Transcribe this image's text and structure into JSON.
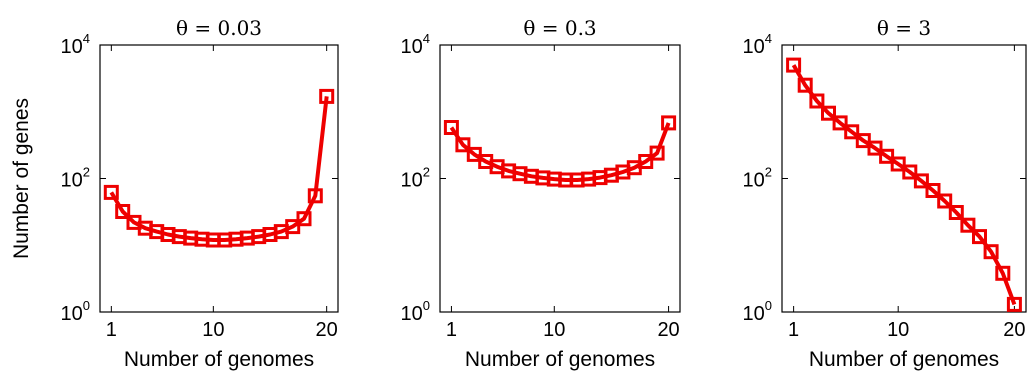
{
  "chart_data": [
    {
      "type": "line",
      "title": "θ = 0.03",
      "xlabel": "Number of genomes",
      "ylabel": "Number of genes",
      "yscale": "log",
      "ylim": [
        1,
        10000
      ],
      "xlim": [
        0,
        21
      ],
      "xticks": [
        1,
        10,
        20
      ],
      "yticks": [
        {
          "value": 1,
          "base": "10",
          "exp": "0"
        },
        {
          "value": 100,
          "base": "10",
          "exp": "2"
        },
        {
          "value": 10000,
          "base": "10",
          "exp": "4"
        }
      ],
      "x": [
        1,
        2,
        3,
        4,
        5,
        6,
        7,
        8,
        9,
        10,
        11,
        12,
        13,
        14,
        15,
        16,
        17,
        18,
        19,
        20
      ],
      "series": [
        {
          "color": "#ee0000",
          "values": [
            62,
            32,
            22,
            18,
            16,
            14.5,
            13.5,
            12.8,
            12.3,
            12,
            12,
            12.3,
            12.8,
            13.5,
            14.5,
            16,
            19,
            25,
            55,
            1700
          ]
        }
      ]
    },
    {
      "type": "line",
      "title": "θ = 0.3",
      "xlabel": "Number of genomes",
      "ylabel": "",
      "yscale": "log",
      "ylim": [
        1,
        10000
      ],
      "xlim": [
        0,
        21
      ],
      "xticks": [
        1,
        10,
        20
      ],
      "yticks": [
        {
          "value": 1,
          "base": "10",
          "exp": "0"
        },
        {
          "value": 100,
          "base": "10",
          "exp": "2"
        },
        {
          "value": 10000,
          "base": "10",
          "exp": "4"
        }
      ],
      "x": [
        1,
        2,
        3,
        4,
        5,
        6,
        7,
        8,
        9,
        10,
        11,
        12,
        13,
        14,
        15,
        16,
        17,
        18,
        19,
        20
      ],
      "series": [
        {
          "color": "#ee0000",
          "values": [
            580,
            320,
            230,
            180,
            150,
            130,
            118,
            108,
            102,
            98,
            95,
            95,
            98,
            103,
            112,
            125,
            145,
            180,
            240,
            680
          ]
        }
      ]
    },
    {
      "type": "line",
      "title": "θ = 3",
      "xlabel": "Number of genomes",
      "ylabel": "",
      "yscale": "log",
      "ylim": [
        1,
        10000
      ],
      "xlim": [
        0,
        21
      ],
      "xticks": [
        1,
        10,
        20
      ],
      "yticks": [
        {
          "value": 1,
          "base": "10",
          "exp": "0"
        },
        {
          "value": 100,
          "base": "10",
          "exp": "2"
        },
        {
          "value": 10000,
          "base": "10",
          "exp": "4"
        }
      ],
      "x": [
        1,
        2,
        3,
        4,
        5,
        6,
        7,
        8,
        9,
        10,
        11,
        12,
        13,
        14,
        15,
        16,
        17,
        18,
        19,
        20
      ],
      "series": [
        {
          "color": "#ee0000",
          "values": [
            5000,
            2500,
            1450,
            950,
            680,
            500,
            370,
            285,
            215,
            165,
            125,
            92,
            66,
            46,
            31,
            20,
            13.5,
            8,
            3.8,
            1.3
          ]
        }
      ]
    }
  ]
}
